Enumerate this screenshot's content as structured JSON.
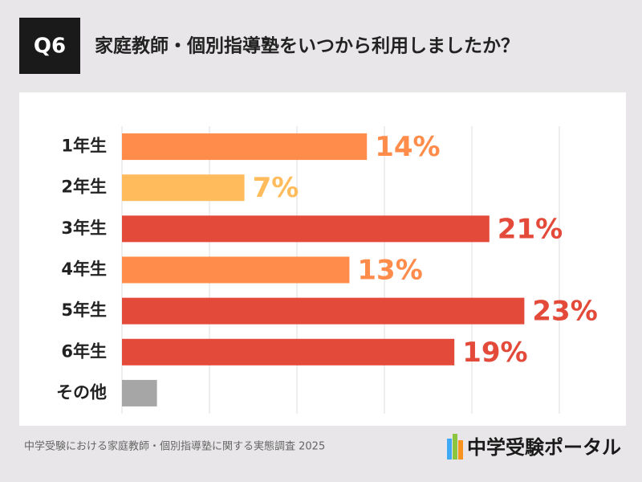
{
  "badge": "Q6",
  "footer": {
    "source": "中学受験における家庭教師・個別指導塾に関する実態調査 2025",
    "logo": "中学受験ポータル"
  },
  "chart_data": {
    "type": "hbar",
    "title": "家庭教師・個別指導塾をいつから利用しましたか？",
    "categories": [
      "1年生",
      "2年生",
      "3年生",
      "4年生",
      "5年生",
      "6年生",
      "その他"
    ],
    "values": [
      14,
      7,
      21,
      13,
      23,
      19,
      2
    ],
    "value_labels": [
      "14%",
      "7%",
      "21%",
      "13%",
      "23%",
      "19%",
      null
    ],
    "colors": [
      "#ff8c4a",
      "#ffbb5c",
      "#e34a3a",
      "#ff8c4a",
      "#e34a3a",
      "#e34a3a",
      "#a6a6a6"
    ],
    "xlim": [
      0,
      25
    ],
    "xticks": [
      0,
      5,
      10,
      15,
      20,
      25
    ],
    "grid": true
  }
}
